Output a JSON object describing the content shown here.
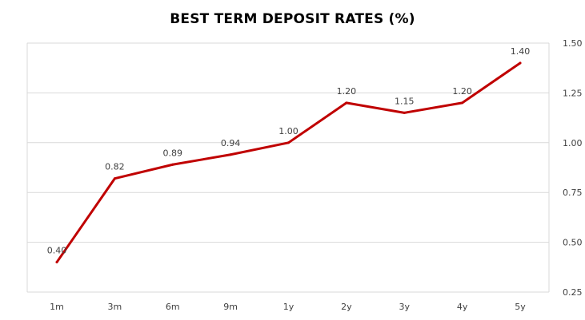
{
  "chart_data": {
    "type": "line",
    "title": "BEST TERM DEPOSIT RATES (%)",
    "categories": [
      "1m",
      "3m",
      "6m",
      "9m",
      "1y",
      "2y",
      "3y",
      "4y",
      "5y"
    ],
    "series": [
      {
        "values": [
          0.4,
          0.82,
          0.89,
          0.94,
          1.0,
          1.2,
          1.15,
          1.2,
          1.4
        ],
        "color": "#C00000"
      }
    ],
    "data_labels": [
      "0.40",
      "0.82",
      "0.89",
      "0.94",
      "1.00",
      "1.20",
      "1.15",
      "1.20",
      "1.40"
    ],
    "y_axis": {
      "position": "right",
      "ylim": [
        0.25,
        1.5
      ],
      "ticks": [
        "0.25",
        "0.50",
        "0.75",
        "1.00",
        "1.25",
        "1.50"
      ]
    },
    "xlabel": "",
    "ylabel": "",
    "grid": true,
    "legend": "none",
    "colors": {
      "line": "#C00000",
      "grid": "#D9D9D9",
      "text": "#404040"
    }
  }
}
